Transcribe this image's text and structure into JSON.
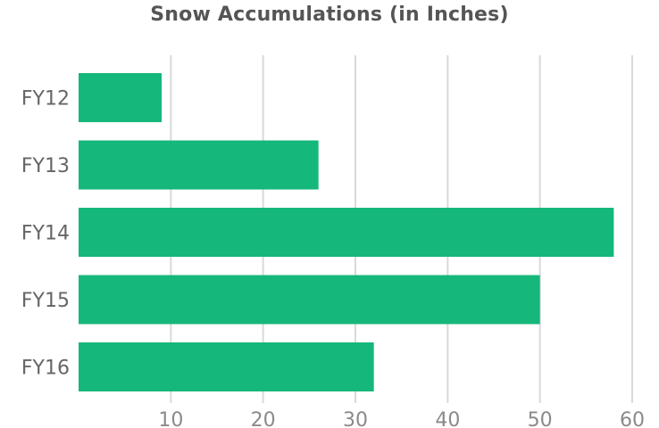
{
  "chart_data": {
    "type": "bar",
    "orientation": "horizontal",
    "title": "Snow Accumulations (in Inches)",
    "categories": [
      "FY12",
      "FY13",
      "FY14",
      "FY15",
      "FY16"
    ],
    "values": [
      9,
      26,
      58,
      50,
      32
    ],
    "xlim": [
      0,
      60
    ],
    "xticks": [
      10,
      20,
      30,
      40,
      50,
      60
    ],
    "xlabel": "",
    "ylabel": "",
    "grid": true,
    "legend": "none",
    "bar_color": "#16b77a",
    "grid_color": "#d9d9d9"
  }
}
